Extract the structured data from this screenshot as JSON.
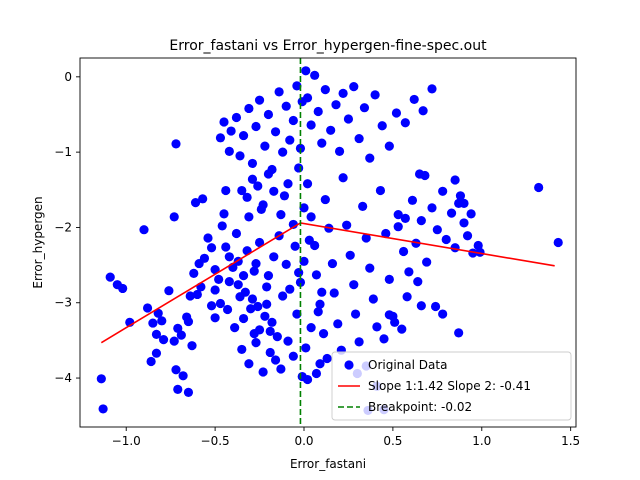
{
  "chart_data": {
    "type": "scatter",
    "title": "Error_fastani vs Error_hypergen-fine-spec.out",
    "xlabel": "Error_fastani",
    "ylabel": "Error_hypergen",
    "xlim": [
      -1.26,
      1.53
    ],
    "ylim": [
      -4.65,
      0.25
    ],
    "xticks": [
      -1.0,
      -0.5,
      0.0,
      0.5,
      1.0,
      1.5
    ],
    "xtick_labels": [
      "−1.0",
      "−0.5",
      "0.0",
      "0.5",
      "1.0",
      "1.5"
    ],
    "yticks": [
      0,
      -1,
      -2,
      -3,
      -4
    ],
    "ytick_labels": [
      "0",
      "−1",
      "−2",
      "−3",
      "−4"
    ],
    "grid": false,
    "legend_position": "lower-right",
    "series": [
      {
        "name": "Original Data",
        "kind": "scatter",
        "color": "#0000ff",
        "points": [
          [
            -1.13,
            -4.41
          ],
          [
            -1.14,
            -4.01
          ],
          [
            -0.86,
            -3.78
          ],
          [
            -1.09,
            -2.66
          ],
          [
            -1.05,
            -2.76
          ],
          [
            -1.02,
            -2.81
          ],
          [
            -0.98,
            -3.26
          ],
          [
            -0.9,
            -2.03
          ],
          [
            -0.88,
            -3.07
          ],
          [
            -0.85,
            -3.27
          ],
          [
            -0.8,
            -3.24
          ],
          [
            -0.79,
            -3.49
          ],
          [
            -0.83,
            -3.42
          ],
          [
            -0.83,
            -3.67
          ],
          [
            -0.82,
            -3.14
          ],
          [
            -0.76,
            -2.84
          ],
          [
            -0.72,
            -0.89
          ],
          [
            -0.73,
            -3.51
          ],
          [
            -0.72,
            -3.89
          ],
          [
            -0.71,
            -4.15
          ],
          [
            -0.68,
            -3.97
          ],
          [
            -0.65,
            -4.19
          ],
          [
            -0.73,
            -1.86
          ],
          [
            -0.71,
            -3.34
          ],
          [
            -0.69,
            -3.43
          ],
          [
            -0.66,
            -3.19
          ],
          [
            -0.64,
            -2.91
          ],
          [
            -0.65,
            -3.25
          ],
          [
            -0.63,
            -3.57
          ],
          [
            -0.62,
            -2.61
          ],
          [
            -0.6,
            -2.89
          ],
          [
            -0.61,
            -1.67
          ],
          [
            -0.57,
            -1.62
          ],
          [
            -0.56,
            -2.41
          ],
          [
            -0.59,
            -2.48
          ],
          [
            -0.58,
            -2.79
          ],
          [
            -0.54,
            -2.14
          ],
          [
            -0.52,
            -3.04
          ],
          [
            -0.52,
            -2.27
          ],
          [
            -0.5,
            -2.56
          ],
          [
            -0.5,
            -3.2
          ],
          [
            -0.48,
            -2.69
          ],
          [
            -0.46,
            -1.98
          ],
          [
            -0.45,
            -1.82
          ],
          [
            -0.44,
            -2.26
          ],
          [
            -0.44,
            -1.51
          ],
          [
            -0.42,
            -2.39
          ],
          [
            -0.4,
            -2.53
          ],
          [
            -0.38,
            -2.08
          ],
          [
            -0.37,
            -2.76
          ],
          [
            -0.36,
            -2.92
          ],
          [
            -0.34,
            -2.64
          ],
          [
            -0.32,
            -2.31
          ],
          [
            -0.31,
            -1.86
          ],
          [
            -0.3,
            -3.08
          ],
          [
            -0.28,
            -3.41
          ],
          [
            -0.27,
            -2.48
          ],
          [
            -0.26,
            -3.05
          ],
          [
            -0.25,
            -2.2
          ],
          [
            -0.24,
            -1.76
          ],
          [
            -0.22,
            -3.18
          ],
          [
            -0.21,
            -2.79
          ],
          [
            -0.2,
            -2.64
          ],
          [
            -0.19,
            -3.66
          ],
          [
            -0.18,
            -3.26
          ],
          [
            -0.17,
            -2.39
          ],
          [
            -0.15,
            -3.45
          ],
          [
            -0.14,
            -2.11
          ],
          [
            -0.13,
            -3.88
          ],
          [
            -0.12,
            -2.91
          ],
          [
            -0.11,
            -1.58
          ],
          [
            -0.1,
            -2.49
          ],
          [
            -0.09,
            -3.51
          ],
          [
            -0.08,
            -2.82
          ],
          [
            -0.06,
            -3.71
          ],
          [
            -0.05,
            -2.25
          ],
          [
            -0.04,
            -3.15
          ],
          [
            -0.03,
            -2.6
          ],
          [
            -0.47,
            -0.81
          ],
          [
            -0.45,
            -0.6
          ],
          [
            -0.42,
            -0.99
          ],
          [
            -0.41,
            -0.72
          ],
          [
            -0.38,
            -0.54
          ],
          [
            -0.36,
            -1.05
          ],
          [
            -0.34,
            -0.78
          ],
          [
            -0.31,
            -0.42
          ],
          [
            -0.29,
            -1.15
          ],
          [
            -0.27,
            -0.66
          ],
          [
            -0.25,
            -0.31
          ],
          [
            -0.22,
            -0.92
          ],
          [
            -0.2,
            -0.5
          ],
          [
            -0.18,
            -1.23
          ],
          [
            -0.16,
            -0.73
          ],
          [
            -0.14,
            -0.2
          ],
          [
            -0.12,
            -1.0
          ],
          [
            -0.1,
            -0.39
          ],
          [
            -0.08,
            -0.84
          ],
          [
            -0.06,
            -0.58
          ],
          [
            -0.04,
            -0.12
          ],
          [
            -0.02,
            -0.95
          ],
          [
            -0.01,
            -0.33
          ],
          [
            0.01,
            0.08
          ],
          [
            0.02,
            -0.28
          ],
          [
            0.04,
            -0.64
          ],
          [
            0.06,
            0.02
          ],
          [
            0.08,
            -0.46
          ],
          [
            0.1,
            -0.88
          ],
          [
            0.12,
            -0.17
          ],
          [
            0.15,
            -0.71
          ],
          [
            0.18,
            -0.37
          ],
          [
            0.2,
            -0.99
          ],
          [
            0.22,
            -0.22
          ],
          [
            0.25,
            -0.56
          ],
          [
            0.28,
            -0.13
          ],
          [
            0.31,
            -0.82
          ],
          [
            0.34,
            -0.41
          ],
          [
            0.37,
            -1.08
          ],
          [
            0.4,
            -0.24
          ],
          [
            0.44,
            -0.65
          ],
          [
            0.48,
            -0.92
          ],
          [
            0.52,
            -0.48
          ],
          [
            0.57,
            -0.61
          ],
          [
            0.62,
            -0.3
          ],
          [
            0.67,
            -0.45
          ],
          [
            0.72,
            -0.16
          ],
          [
            0.02,
            -1.42
          ],
          [
            0.04,
            -1.86
          ],
          [
            0.06,
            -2.24
          ],
          [
            0.07,
            -2.63
          ],
          [
            0.09,
            -3.02
          ],
          [
            0.11,
            -3.41
          ],
          [
            0.12,
            -1.63
          ],
          [
            0.14,
            -2.01
          ],
          [
            0.16,
            -2.48
          ],
          [
            0.17,
            -2.87
          ],
          [
            0.19,
            -3.28
          ],
          [
            0.21,
            -3.63
          ],
          [
            0.22,
            -1.34
          ],
          [
            0.24,
            -1.97
          ],
          [
            0.26,
            -2.37
          ],
          [
            0.28,
            -2.76
          ],
          [
            0.29,
            -3.15
          ],
          [
            0.31,
            -3.52
          ],
          [
            0.33,
            -1.72
          ],
          [
            0.35,
            -2.14
          ],
          [
            0.37,
            -2.54
          ],
          [
            0.39,
            -2.95
          ],
          [
            0.41,
            -3.32
          ],
          [
            0.43,
            -1.51
          ],
          [
            0.46,
            -2.08
          ],
          [
            0.48,
            -2.69
          ],
          [
            0.5,
            -3.18
          ],
          [
            0.53,
            -1.83
          ],
          [
            0.56,
            -2.32
          ],
          [
            0.58,
            -2.92
          ],
          [
            0.61,
            -1.64
          ],
          [
            0.63,
            -2.21
          ],
          [
            0.66,
            -1.91
          ],
          [
            0.69,
            -2.46
          ],
          [
            0.72,
            -1.74
          ],
          [
            0.75,
            -2.03
          ],
          [
            0.78,
            -1.52
          ],
          [
            0.8,
            -2.16
          ],
          [
            0.83,
            -1.81
          ],
          [
            0.85,
            -2.27
          ],
          [
            0.87,
            -1.68
          ],
          [
            0.9,
            -1.94
          ],
          [
            0.92,
            -2.11
          ],
          [
            0.95,
            -2.34
          ],
          [
            0.98,
            -2.24
          ],
          [
            0.65,
            -1.29
          ],
          [
            0.68,
            -1.31
          ],
          [
            0.85,
            -1.37
          ],
          [
            0.88,
            -1.58
          ],
          [
            0.9,
            -1.68
          ],
          [
            0.59,
            -2.59
          ],
          [
            0.64,
            -2.72
          ],
          [
            0.66,
            -3.04
          ],
          [
            0.74,
            -3.05
          ],
          [
            0.78,
            -3.15
          ],
          [
            0.87,
            -3.4
          ],
          [
            0.48,
            -3.16
          ],
          [
            0.55,
            -3.35
          ],
          [
            0.51,
            -3.26
          ],
          [
            0.53,
            -1.99
          ],
          [
            0.45,
            -3.48
          ],
          [
            0.35,
            -3.84
          ],
          [
            0.3,
            -3.94
          ],
          [
            0.41,
            -4.11
          ],
          [
            0.45,
            -4.42
          ],
          [
            0.36,
            -4.43
          ],
          [
            0.57,
            -1.88
          ],
          [
            1.32,
            -1.47
          ],
          [
            1.43,
            -2.2
          ],
          [
            0.99,
            -2.33
          ],
          [
            0.94,
            -1.82
          ],
          [
            -0.01,
            -3.98
          ],
          [
            0.02,
            -4.02
          ],
          [
            0.07,
            -3.94
          ],
          [
            0.09,
            -3.81
          ],
          [
            0.13,
            -3.74
          ],
          [
            0.01,
            -3.6
          ],
          [
            0.04,
            -3.33
          ],
          [
            0.08,
            -3.12
          ],
          [
            0.1,
            -2.86
          ],
          [
            -0.02,
            -2.73
          ],
          [
            0.0,
            -2.45
          ],
          [
            0.03,
            -2.17
          ],
          [
            -0.35,
            -3.62
          ],
          [
            -0.31,
            -3.81
          ],
          [
            -0.27,
            -3.53
          ],
          [
            -0.23,
            -3.92
          ],
          [
            -0.19,
            -3.38
          ],
          [
            -0.16,
            -3.76
          ],
          [
            -0.43,
            -3.09
          ],
          [
            -0.39,
            -3.33
          ],
          [
            -0.34,
            -3.21
          ],
          [
            -0.29,
            -2.95
          ],
          [
            -0.25,
            -3.36
          ],
          [
            -0.21,
            -3.02
          ],
          [
            -0.5,
            -2.83
          ],
          [
            -0.47,
            -3.01
          ],
          [
            -0.42,
            -2.72
          ],
          [
            -0.37,
            -2.45
          ],
          [
            -0.33,
            -2.86
          ],
          [
            -0.28,
            -2.58
          ],
          [
            -0.35,
            -1.51
          ],
          [
            -0.32,
            -1.6
          ],
          [
            -0.29,
            -1.36
          ],
          [
            -0.26,
            -1.45
          ],
          [
            -0.23,
            -1.7
          ],
          [
            -0.2,
            -1.29
          ],
          [
            -0.17,
            -1.52
          ],
          [
            -0.13,
            -1.83
          ],
          [
            -0.09,
            -1.42
          ],
          [
            -0.06,
            -1.96
          ],
          [
            -0.03,
            -1.21
          ],
          [
            0.0,
            -1.74
          ]
        ]
      },
      {
        "name": "Slope 1:1.42 Slope 2: -0.41",
        "kind": "line",
        "color": "#ff0000",
        "points": [
          [
            -1.14,
            -3.53
          ],
          [
            -0.02,
            -1.94
          ],
          [
            1.41,
            -2.51
          ]
        ]
      },
      {
        "name": "Breakpoint: -0.02",
        "kind": "vline",
        "color": "#008000",
        "x": -0.02
      }
    ]
  }
}
